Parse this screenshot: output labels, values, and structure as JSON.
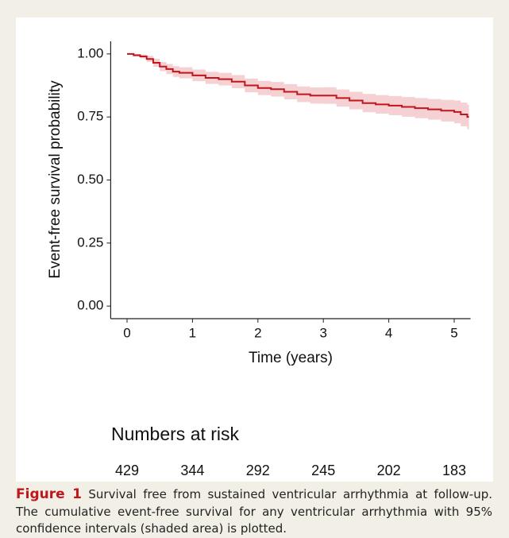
{
  "chart_data": {
    "type": "step",
    "x_label": "Time (years)",
    "y_label": "Event-free survival probability",
    "x": [
      0,
      0.1,
      0.2,
      0.3,
      0.4,
      0.5,
      0.6,
      0.7,
      0.8,
      1.0,
      1.2,
      1.4,
      1.6,
      1.8,
      2.0,
      2.2,
      2.4,
      2.6,
      2.8,
      3.0,
      3.2,
      3.4,
      3.6,
      3.8,
      4.0,
      4.2,
      4.4,
      4.6,
      4.8,
      5.0,
      5.1,
      5.2
    ],
    "series": [
      {
        "color": "#c0161c",
        "values": [
          1.0,
          0.995,
          0.99,
          0.98,
          0.965,
          0.95,
          0.94,
          0.93,
          0.925,
          0.915,
          0.905,
          0.9,
          0.89,
          0.875,
          0.865,
          0.86,
          0.85,
          0.84,
          0.835,
          0.835,
          0.825,
          0.815,
          0.805,
          0.8,
          0.795,
          0.79,
          0.785,
          0.78,
          0.775,
          0.77,
          0.76,
          0.75
        ]
      }
    ],
    "ci": {
      "color": "#f5c9cb",
      "upper": [
        1.0,
        1.0,
        0.998,
        0.992,
        0.981,
        0.968,
        0.96,
        0.951,
        0.947,
        0.938,
        0.929,
        0.925,
        0.916,
        0.902,
        0.893,
        0.889,
        0.88,
        0.871,
        0.867,
        0.868,
        0.859,
        0.85,
        0.841,
        0.837,
        0.833,
        0.829,
        0.825,
        0.821,
        0.818,
        0.815,
        0.807,
        0.799
      ],
      "lower": [
        1.0,
        0.99,
        0.982,
        0.968,
        0.949,
        0.932,
        0.92,
        0.909,
        0.903,
        0.892,
        0.881,
        0.875,
        0.864,
        0.848,
        0.837,
        0.831,
        0.82,
        0.809,
        0.803,
        0.802,
        0.791,
        0.78,
        0.769,
        0.763,
        0.757,
        0.751,
        0.745,
        0.739,
        0.732,
        0.725,
        0.713,
        0.701
      ]
    },
    "xlim": [
      -0.25,
      5.25
    ],
    "xticks": [
      0,
      1,
      2,
      3,
      4,
      5
    ],
    "ylim": [
      -0.05,
      1.05
    ],
    "yticks": [
      {
        "value": 0,
        "label": "0.00"
      },
      {
        "value": 0.25,
        "label": "0.25"
      },
      {
        "value": 0.5,
        "label": "0.50"
      },
      {
        "value": 0.75,
        "label": "0.75"
      },
      {
        "value": 1,
        "label": "1.00"
      }
    ],
    "risk_table": {
      "title": "Numbers at risk",
      "x": [
        0,
        1,
        2,
        3,
        4,
        5
      ],
      "values": [
        429,
        344,
        292,
        245,
        202,
        183
      ]
    }
  },
  "caption": {
    "label": "Figure 1",
    "text": "Survival free from sustained ventricular arrhythmia at follow-up. The cumulative event-free survival for any ventricular arrhythmia with 95% confidence intervals (shaded area) is plotted."
  }
}
